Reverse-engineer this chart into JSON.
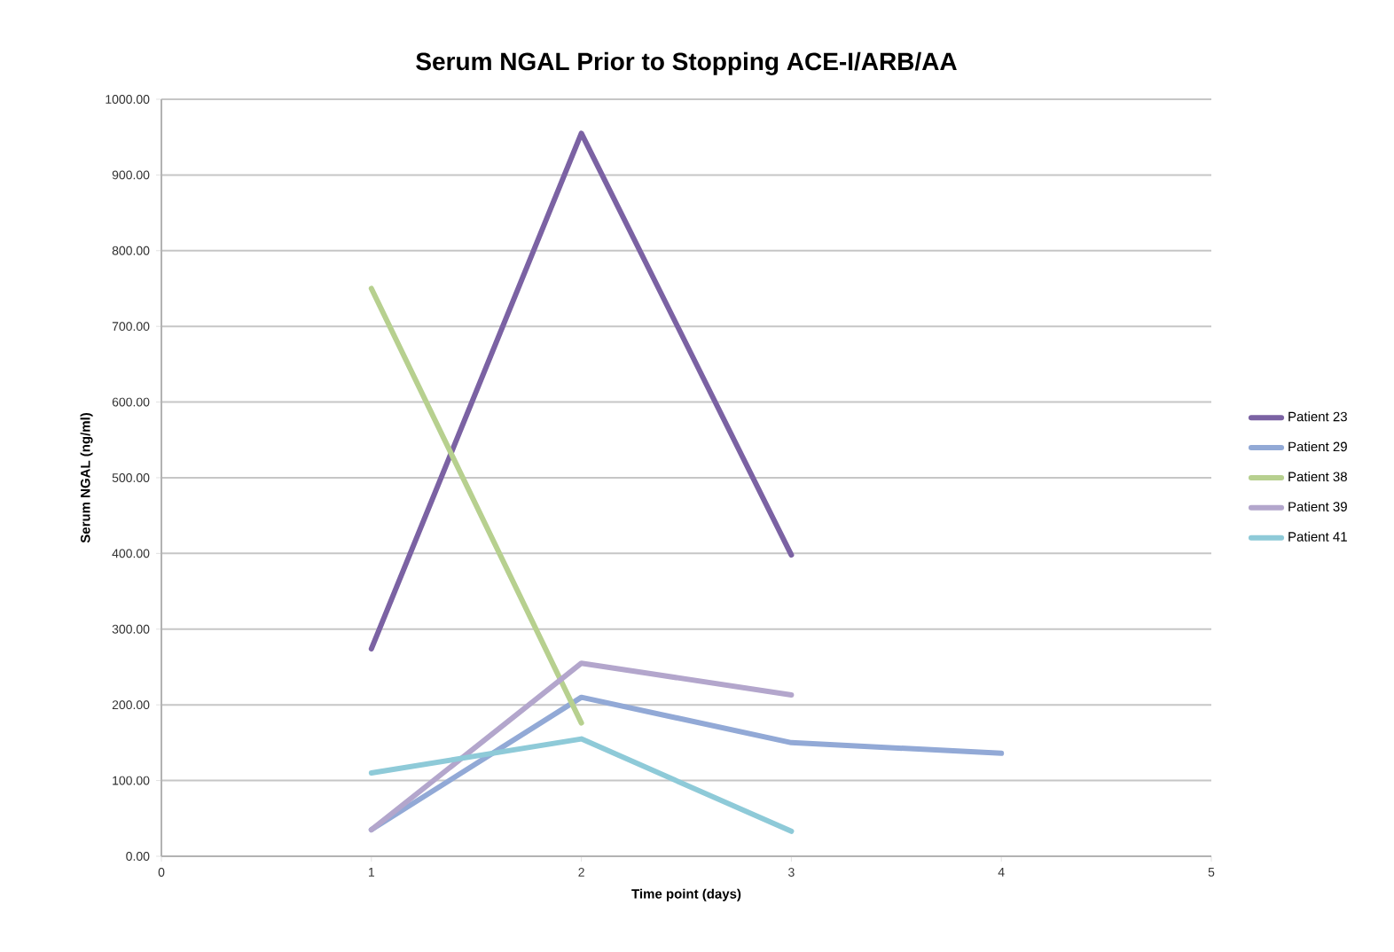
{
  "chart_data": {
    "type": "line",
    "title": "Serum NGAL Prior to Stopping ACE-I/ARB/AA",
    "xlabel": "Time point (days)",
    "ylabel": "Serum NGAL (ng/ml)",
    "xlim": [
      0,
      5
    ],
    "xticks": [
      0,
      1,
      2,
      3,
      4,
      5
    ],
    "ylim": [
      0,
      1000
    ],
    "yticks": [
      {
        "value": 0,
        "label": "0.00"
      },
      {
        "value": 100,
        "label": "100.00"
      },
      {
        "value": 200,
        "label": "200.00"
      },
      {
        "value": 300,
        "label": "300.00"
      },
      {
        "value": 400,
        "label": "400.00"
      },
      {
        "value": 500,
        "label": "500.00"
      },
      {
        "value": 600,
        "label": "600.00"
      },
      {
        "value": 700,
        "label": "700.00"
      },
      {
        "value": 800,
        "label": "800.00"
      },
      {
        "value": 900,
        "label": "900.00"
      },
      {
        "value": 1000,
        "label": "1000.00"
      }
    ],
    "grid": "y",
    "legend": "right",
    "marker": "none",
    "line_style": "solid",
    "series": [
      {
        "name": "Patient 23",
        "color": "#7b62a3",
        "x": [
          1,
          2,
          3
        ],
        "values": [
          274,
          955,
          398
        ]
      },
      {
        "name": "Patient 29",
        "color": "#92a9d6",
        "x": [
          1,
          2,
          3,
          4
        ],
        "values": [
          35,
          210,
          150,
          136
        ]
      },
      {
        "name": "Patient 38",
        "color": "#b7d08f",
        "x": [
          1,
          2
        ],
        "values": [
          750,
          176
        ]
      },
      {
        "name": "Patient 39",
        "color": "#b3a6cc",
        "x": [
          1,
          2,
          3
        ],
        "values": [
          35,
          255,
          213
        ]
      },
      {
        "name": "Patient 41",
        "color": "#8ecad8",
        "x": [
          1,
          2,
          3
        ],
        "values": [
          110,
          155,
          33
        ]
      }
    ]
  }
}
